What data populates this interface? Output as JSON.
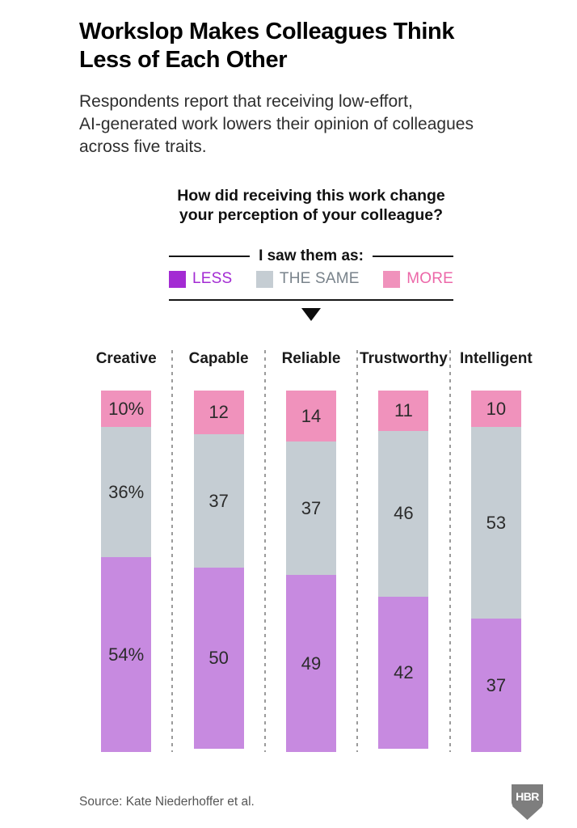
{
  "header": {
    "title_lines": [
      "Workslop Makes Colleagues Think",
      "Less of Each Other"
    ],
    "subtitle_lines": [
      "Respondents report that receiving low-effort,",
      "AI-generated work lowers their opinion of colleagues",
      "across five traits."
    ]
  },
  "question": {
    "lines": [
      "How did receiving this work change",
      "your perception of your colleague?"
    ]
  },
  "legend": {
    "heading": "I saw them as:",
    "items": [
      {
        "label": "LESS",
        "swatch_color": "#a32bd3",
        "label_color": "#a32bd3"
      },
      {
        "label": "THE SAME",
        "swatch_color": "#c5cdd3",
        "label_color": "#79838b"
      },
      {
        "label": "MORE",
        "swatch_color": "#f092bc",
        "label_color": "#ec67a8"
      }
    ]
  },
  "chart_data": {
    "type": "bar",
    "variant": "stacked-100-percent-column",
    "title": "How did receiving this work change your perception of your colleague?",
    "categories": [
      "Creative",
      "Capable",
      "Reliable",
      "Trustworthy",
      "Intelligent"
    ],
    "stack_order_top_to_bottom": [
      "MORE",
      "THE SAME",
      "LESS"
    ],
    "series": [
      {
        "name": "MORE",
        "color": "#f092bc",
        "values": [
          10,
          12,
          14,
          11,
          10
        ],
        "value_labels": [
          "10%",
          "12",
          "14",
          "11",
          "10"
        ]
      },
      {
        "name": "THE SAME",
        "color": "#c5cdd3",
        "values": [
          36,
          37,
          37,
          46,
          53
        ],
        "value_labels": [
          "36%",
          "37",
          "37",
          "46",
          "53"
        ]
      },
      {
        "name": "LESS",
        "color": "#c78ae0",
        "values": [
          54,
          50,
          49,
          42,
          37
        ],
        "value_labels": [
          "54%",
          "50",
          "49",
          "42",
          "37"
        ]
      }
    ],
    "ylim": [
      0,
      100
    ],
    "grid": false,
    "legend_position": "top"
  },
  "footer": {
    "source": "Source: Kate Niederhoffer et al.",
    "logo_text": "HBR"
  }
}
